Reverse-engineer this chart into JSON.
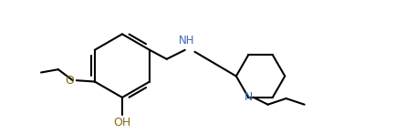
{
  "background_color": "#ffffff",
  "line_color": "#000000",
  "heteroatom_color_O": "#8B6914",
  "heteroatom_color_N": "#4169AA",
  "line_width": 1.5,
  "font_size_NH": 8.5,
  "font_size_N": 9,
  "font_size_OH": 9,
  "font_size_O": 9,
  "fig_width": 4.55,
  "fig_height": 1.47,
  "dpi": 100,
  "xlim": [
    0.0,
    5.5
  ],
  "ylim": [
    0.0,
    2.2
  ]
}
